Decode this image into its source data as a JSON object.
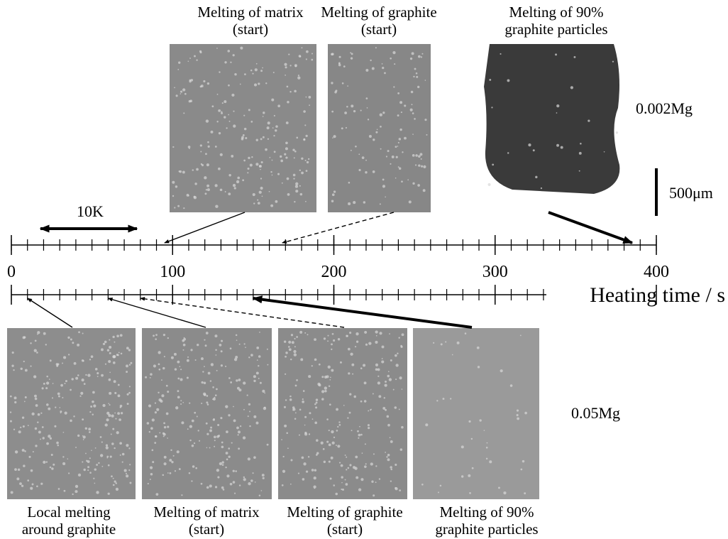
{
  "xlim": [
    0,
    400
  ],
  "xticks": [
    0,
    100,
    200,
    300,
    400
  ],
  "axis_label": "Heating time / s",
  "scale_temperature": "10K",
  "scale_length": "500μm",
  "top_row": {
    "sample": "0.002Mg",
    "panels": [
      {
        "label": [
          "Melting of matrix",
          "(start)"
        ],
        "time": 95
      },
      {
        "label": [
          "Melting of graphite",
          "(start)"
        ],
        "time": 168
      },
      {
        "label": [
          "Melting of 90%",
          "graphite particles"
        ],
        "time": 385
      }
    ]
  },
  "bottom_row": {
    "sample": "0.05Mg",
    "panels": [
      {
        "label": [
          "Local melting",
          "around graphite"
        ],
        "time": 10
      },
      {
        "label": [
          "Melting of matrix",
          "(start)"
        ],
        "time": 60
      },
      {
        "label": [
          "Melting of graphite",
          "(start)"
        ],
        "time": 80
      },
      {
        "label": [
          "Melting of 90%",
          "graphite particles"
        ],
        "time": 150
      }
    ]
  }
}
